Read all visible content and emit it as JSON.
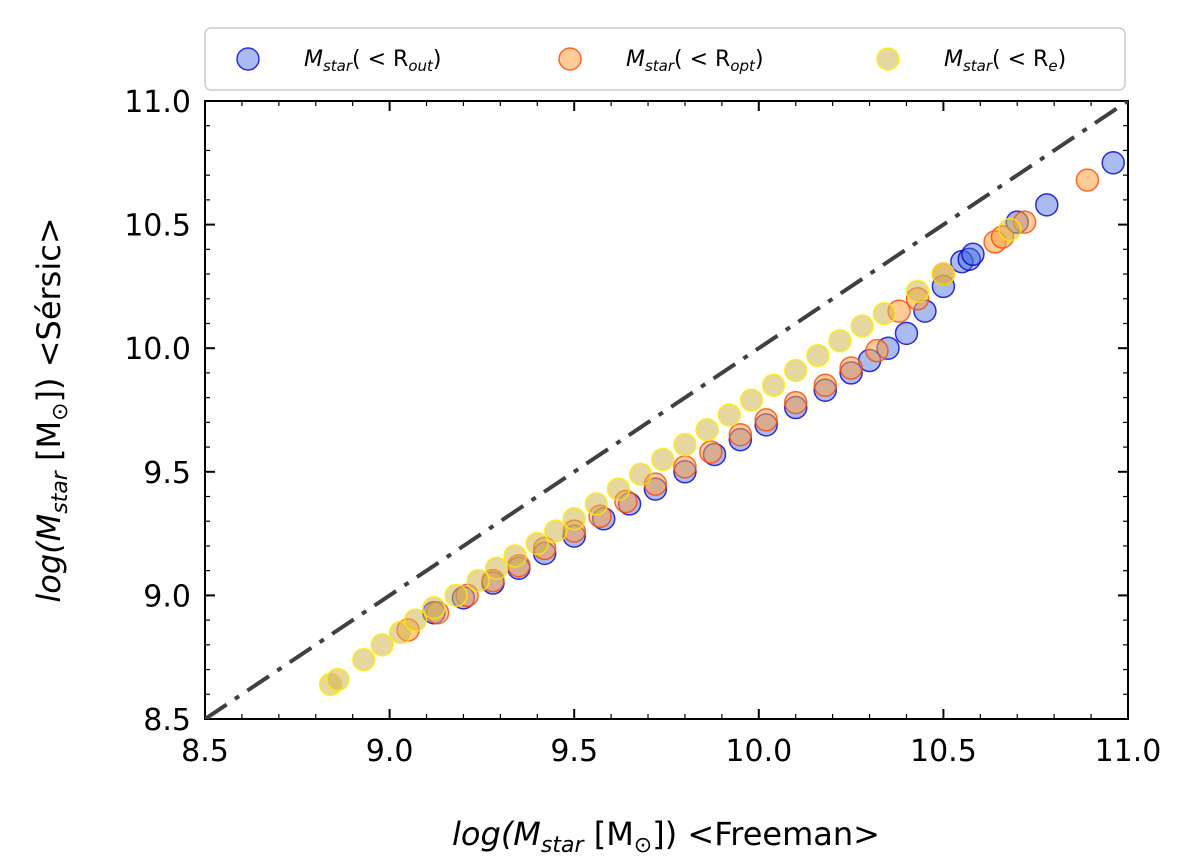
{
  "chart_data": {
    "type": "scatter",
    "xlabel": {
      "pre": "log(M",
      "sub": "star",
      "mid": " [M",
      "sub2": "⊙",
      "post": "]) <Freeman>"
    },
    "ylabel": {
      "pre": "log(M",
      "sub": "star",
      "mid": " [M",
      "sub2": "⊙",
      "post": "]) <Sérsic>"
    },
    "xlim": [
      8.5,
      11.0
    ],
    "ylim": [
      8.5,
      11.0
    ],
    "xticks": [
      "8.5",
      "9.0",
      "9.5",
      "10.0",
      "10.5",
      "11.0"
    ],
    "yticks": [
      "8.5",
      "9.0",
      "9.5",
      "10.0",
      "10.5",
      "11.0"
    ],
    "legend_position": "top",
    "reference_line": {
      "name": "one-to-one",
      "style": "dash-dot",
      "color": "#404040",
      "x": [
        8.5,
        11.0
      ],
      "y": [
        8.5,
        11.0
      ]
    },
    "series": [
      {
        "name": "M_star(<R_out)",
        "legend": {
          "base": "M",
          "sub": "star",
          "mid": "( < R",
          "sub2": "out",
          "post": ")"
        },
        "fill": "#4169e1",
        "edge": "#0000cd",
        "opacity": 0.45,
        "x": [
          9.12,
          9.2,
          9.28,
          9.35,
          9.42,
          9.5,
          9.58,
          9.65,
          9.72,
          9.8,
          9.88,
          9.95,
          10.02,
          10.1,
          10.18,
          10.25,
          10.3,
          10.35,
          10.4,
          10.45,
          10.5,
          10.55,
          10.57,
          10.58,
          10.7,
          10.78,
          10.96
        ],
        "y": [
          8.93,
          8.99,
          9.05,
          9.11,
          9.17,
          9.24,
          9.31,
          9.37,
          9.43,
          9.5,
          9.57,
          9.63,
          9.69,
          9.76,
          9.83,
          9.9,
          9.95,
          10.0,
          10.06,
          10.15,
          10.25,
          10.35,
          10.36,
          10.38,
          10.51,
          10.58,
          10.75
        ]
      },
      {
        "name": "M_star(<R_opt)",
        "legend": {
          "base": "M",
          "sub": "star",
          "mid": "( < R",
          "sub2": "opt",
          "post": ")"
        },
        "fill": "#ffa040",
        "edge": "#ff4500",
        "opacity": 0.55,
        "x": [
          9.05,
          9.13,
          9.21,
          9.28,
          9.35,
          9.42,
          9.5,
          9.57,
          9.64,
          9.72,
          9.8,
          9.87,
          9.95,
          10.02,
          10.1,
          10.18,
          10.25,
          10.32,
          10.38,
          10.43,
          10.5,
          10.64,
          10.66,
          10.72,
          10.89
        ],
        "y": [
          8.86,
          8.93,
          9.0,
          9.06,
          9.12,
          9.19,
          9.26,
          9.32,
          9.38,
          9.45,
          9.52,
          9.58,
          9.65,
          9.71,
          9.78,
          9.85,
          9.92,
          9.99,
          10.15,
          10.2,
          10.3,
          10.43,
          10.45,
          10.51,
          10.68
        ]
      },
      {
        "name": "M_star(<R_e)",
        "legend": {
          "base": "M",
          "sub": "star",
          "mid": "( < R",
          "sub2": "e",
          "post": ")"
        },
        "fill": "#d2b450",
        "edge": "#ffee00",
        "opacity": 0.55,
        "x": [
          8.84,
          8.86,
          8.93,
          8.98,
          9.03,
          9.07,
          9.12,
          9.18,
          9.24,
          9.29,
          9.34,
          9.4,
          9.45,
          9.5,
          9.56,
          9.62,
          9.68,
          9.74,
          9.8,
          9.86,
          9.92,
          9.98,
          10.04,
          10.1,
          10.16,
          10.22,
          10.28,
          10.34,
          10.43,
          10.5,
          10.68
        ],
        "y": [
          8.64,
          8.66,
          8.74,
          8.8,
          8.85,
          8.9,
          8.95,
          9.0,
          9.06,
          9.11,
          9.16,
          9.21,
          9.26,
          9.31,
          9.37,
          9.43,
          9.49,
          9.55,
          9.61,
          9.67,
          9.73,
          9.79,
          9.85,
          9.91,
          9.97,
          10.03,
          10.09,
          10.14,
          10.23,
          10.3,
          10.48
        ]
      }
    ]
  }
}
